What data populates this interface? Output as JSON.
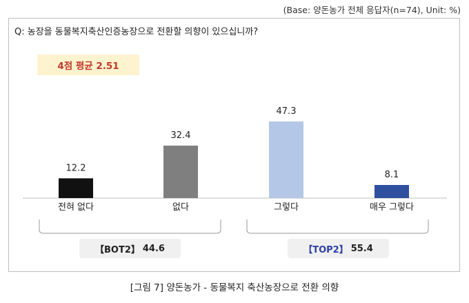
{
  "base_note": "(Base: 양돈농가 전체 응답자(n=74), Unit: %)",
  "question": "Q: 농장을 동물복지축산인증농장으로 전환할 의향이 있으십니까?",
  "average_label": "4점 평균 2.51",
  "bot2": {
    "label": "【BOT2】",
    "value": "44.6"
  },
  "top2": {
    "label": "【TOP2】",
    "value": "55.4"
  },
  "caption": "[그림 7] 양돈농가 - 동물복지 축산농장으로 전환 의향",
  "colors": {
    "bar1": "#111111",
    "bar2": "#7f7f7f",
    "bar3": "#b4c7e7",
    "bar4": "#2f4f9f",
    "avg_bg": "#fdf3cf",
    "avg_text": "#c0392b",
    "top2_accent": "#2e3fa8"
  },
  "chart_data": {
    "type": "bar",
    "categories": [
      "전혀 없다",
      "없다",
      "그렇다",
      "매우 그렇다"
    ],
    "values": [
      12.2,
      32.4,
      47.3,
      8.1
    ],
    "value_labels": [
      "12.2",
      "32.4",
      "47.3",
      "8.1"
    ],
    "ylim": [
      0,
      47.3
    ],
    "grid": false,
    "legend": "none",
    "unit": "%"
  }
}
